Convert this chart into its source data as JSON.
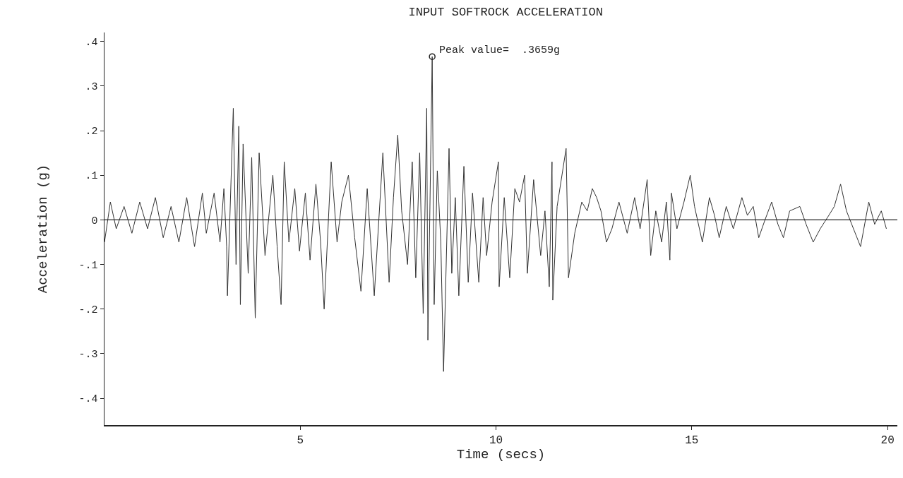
{
  "chart_data": {
    "type": "line",
    "title": "INPUT SOFTROCK ACCELERATION",
    "xlabel": "Time (secs)",
    "ylabel": "Acceleration (g)",
    "xlim": [
      0,
      20.25
    ],
    "xticks": [
      5,
      10,
      15,
      20
    ],
    "ylim": [
      -0.46,
      0.42
    ],
    "yticks": [
      {
        "value": 0.4,
        "label": ".4"
      },
      {
        "value": 0.3,
        "label": ".3"
      },
      {
        "value": 0.2,
        "label": ".2"
      },
      {
        "value": 0.1,
        "label": ".1"
      },
      0,
      {
        "value": -0.1,
        "label": "-.1"
      },
      {
        "value": -0.2,
        "label": "-.2"
      },
      {
        "value": -0.3,
        "label": "-.3"
      },
      {
        "value": -0.4,
        "label": "-.4"
      }
    ],
    "grid": false,
    "line_style": "solid",
    "ref_lines": [
      {
        "axis": "y",
        "value": 0,
        "color": "#222222"
      }
    ],
    "annotations": [
      {
        "text": "Peak value=  .3659g",
        "x": 8.37,
        "y": 0.3659
      }
    ],
    "series": [
      {
        "color": "#333333",
        "x": [
          0,
          0.15,
          0.3,
          0.5,
          0.7,
          0.9,
          1.1,
          1.3,
          1.5,
          1.7,
          1.9,
          2.1,
          2.3,
          2.5,
          2.6,
          2.8,
          2.95,
          3.05,
          3.12,
          3.14,
          3.29,
          3.36,
          3.43,
          3.47,
          3.54,
          3.67,
          3.76,
          3.85,
          3.95,
          4.1,
          4.3,
          4.41,
          4.51,
          4.59,
          4.71,
          4.86,
          4.98,
          5.13,
          5.25,
          5.4,
          5.52,
          5.61,
          5.79,
          5.94,
          6.06,
          6.23,
          6.39,
          6.55,
          6.71,
          6.89,
          7.11,
          7.27,
          7.38,
          7.49,
          7.59,
          7.74,
          7.86,
          7.95,
          8.05,
          8.14,
          8.23,
          8.26,
          8.37,
          8.42,
          8.5,
          8.59,
          8.66,
          8.8,
          8.87,
          8.96,
          9.05,
          9.18,
          9.29,
          9.4,
          9.56,
          9.67,
          9.76,
          9.9,
          10.06,
          10.08,
          10.21,
          10.35,
          10.48,
          10.6,
          10.73,
          10.8,
          10.96,
          11.14,
          11.25,
          11.36,
          11.43,
          11.45,
          11.56,
          11.79,
          11.85,
          12.01,
          12.19,
          12.33,
          12.46,
          12.57,
          12.68,
          12.82,
          12.96,
          13.14,
          13.35,
          13.54,
          13.68,
          13.86,
          13.95,
          14.08,
          14.23,
          14.35,
          14.44,
          14.48,
          14.62,
          14.8,
          14.96,
          15.07,
          15.27,
          15.45,
          15.58,
          15.7,
          15.88,
          16.06,
          16.28,
          16.42,
          16.57,
          16.71,
          16.87,
          17.04,
          17.2,
          17.34,
          17.5,
          17.76,
          17.92,
          18.1,
          18.28,
          18.5,
          18.64,
          18.8,
          18.95,
          19.13,
          19.31,
          19.52,
          19.67,
          19.84,
          19.97
        ],
        "values": [
          -0.05,
          0.04,
          -0.02,
          0.03,
          -0.03,
          0.04,
          -0.02,
          0.05,
          -0.04,
          0.03,
          -0.05,
          0.05,
          -0.06,
          0.06,
          -0.03,
          0.06,
          -0.05,
          0.07,
          -0.06,
          -0.17,
          0.25,
          -0.1,
          0.21,
          -0.19,
          0.17,
          -0.12,
          0.14,
          -0.22,
          0.15,
          -0.08,
          0.1,
          -0.06,
          -0.19,
          0.13,
          -0.05,
          0.07,
          -0.07,
          0.06,
          -0.09,
          0.08,
          -0.05,
          -0.2,
          0.13,
          -0.05,
          0.04,
          0.1,
          -0.04,
          -0.16,
          0.07,
          -0.17,
          0.15,
          -0.14,
          0.05,
          0.19,
          0.02,
          -0.1,
          0.13,
          -0.13,
          0.15,
          -0.21,
          0.25,
          -0.27,
          0.3659,
          -0.19,
          0.11,
          -0.05,
          -0.34,
          0.16,
          -0.12,
          0.05,
          -0.17,
          0.12,
          -0.14,
          0.06,
          -0.14,
          0.05,
          -0.08,
          0.04,
          0.13,
          -0.15,
          0.05,
          -0.13,
          0.07,
          0.04,
          0.1,
          -0.12,
          0.09,
          -0.08,
          0.02,
          -0.15,
          0.13,
          -0.18,
          0.03,
          0.16,
          -0.13,
          -0.03,
          0.04,
          0.02,
          0.07,
          0.05,
          0.02,
          -0.05,
          -0.02,
          0.04,
          -0.03,
          0.05,
          -0.02,
          0.09,
          -0.08,
          0.02,
          -0.05,
          0.04,
          -0.09,
          0.06,
          -0.02,
          0.04,
          0.1,
          0.03,
          -0.05,
          0.05,
          0.01,
          -0.04,
          0.03,
          -0.02,
          0.05,
          0.01,
          0.03,
          -0.04,
          0,
          0.04,
          -0.01,
          -0.04,
          0.02,
          0.03,
          -0.01,
          -0.05,
          -0.02,
          0.01,
          0.03,
          0.08,
          0.02,
          -0.02,
          -0.06,
          0.04,
          -0.01,
          0.02,
          -0.02
        ]
      },
      {
        "type": "scatter",
        "marker": "circle",
        "color": "#222222",
        "x": [
          8.37
        ],
        "values": [
          0.3659
        ]
      }
    ]
  }
}
